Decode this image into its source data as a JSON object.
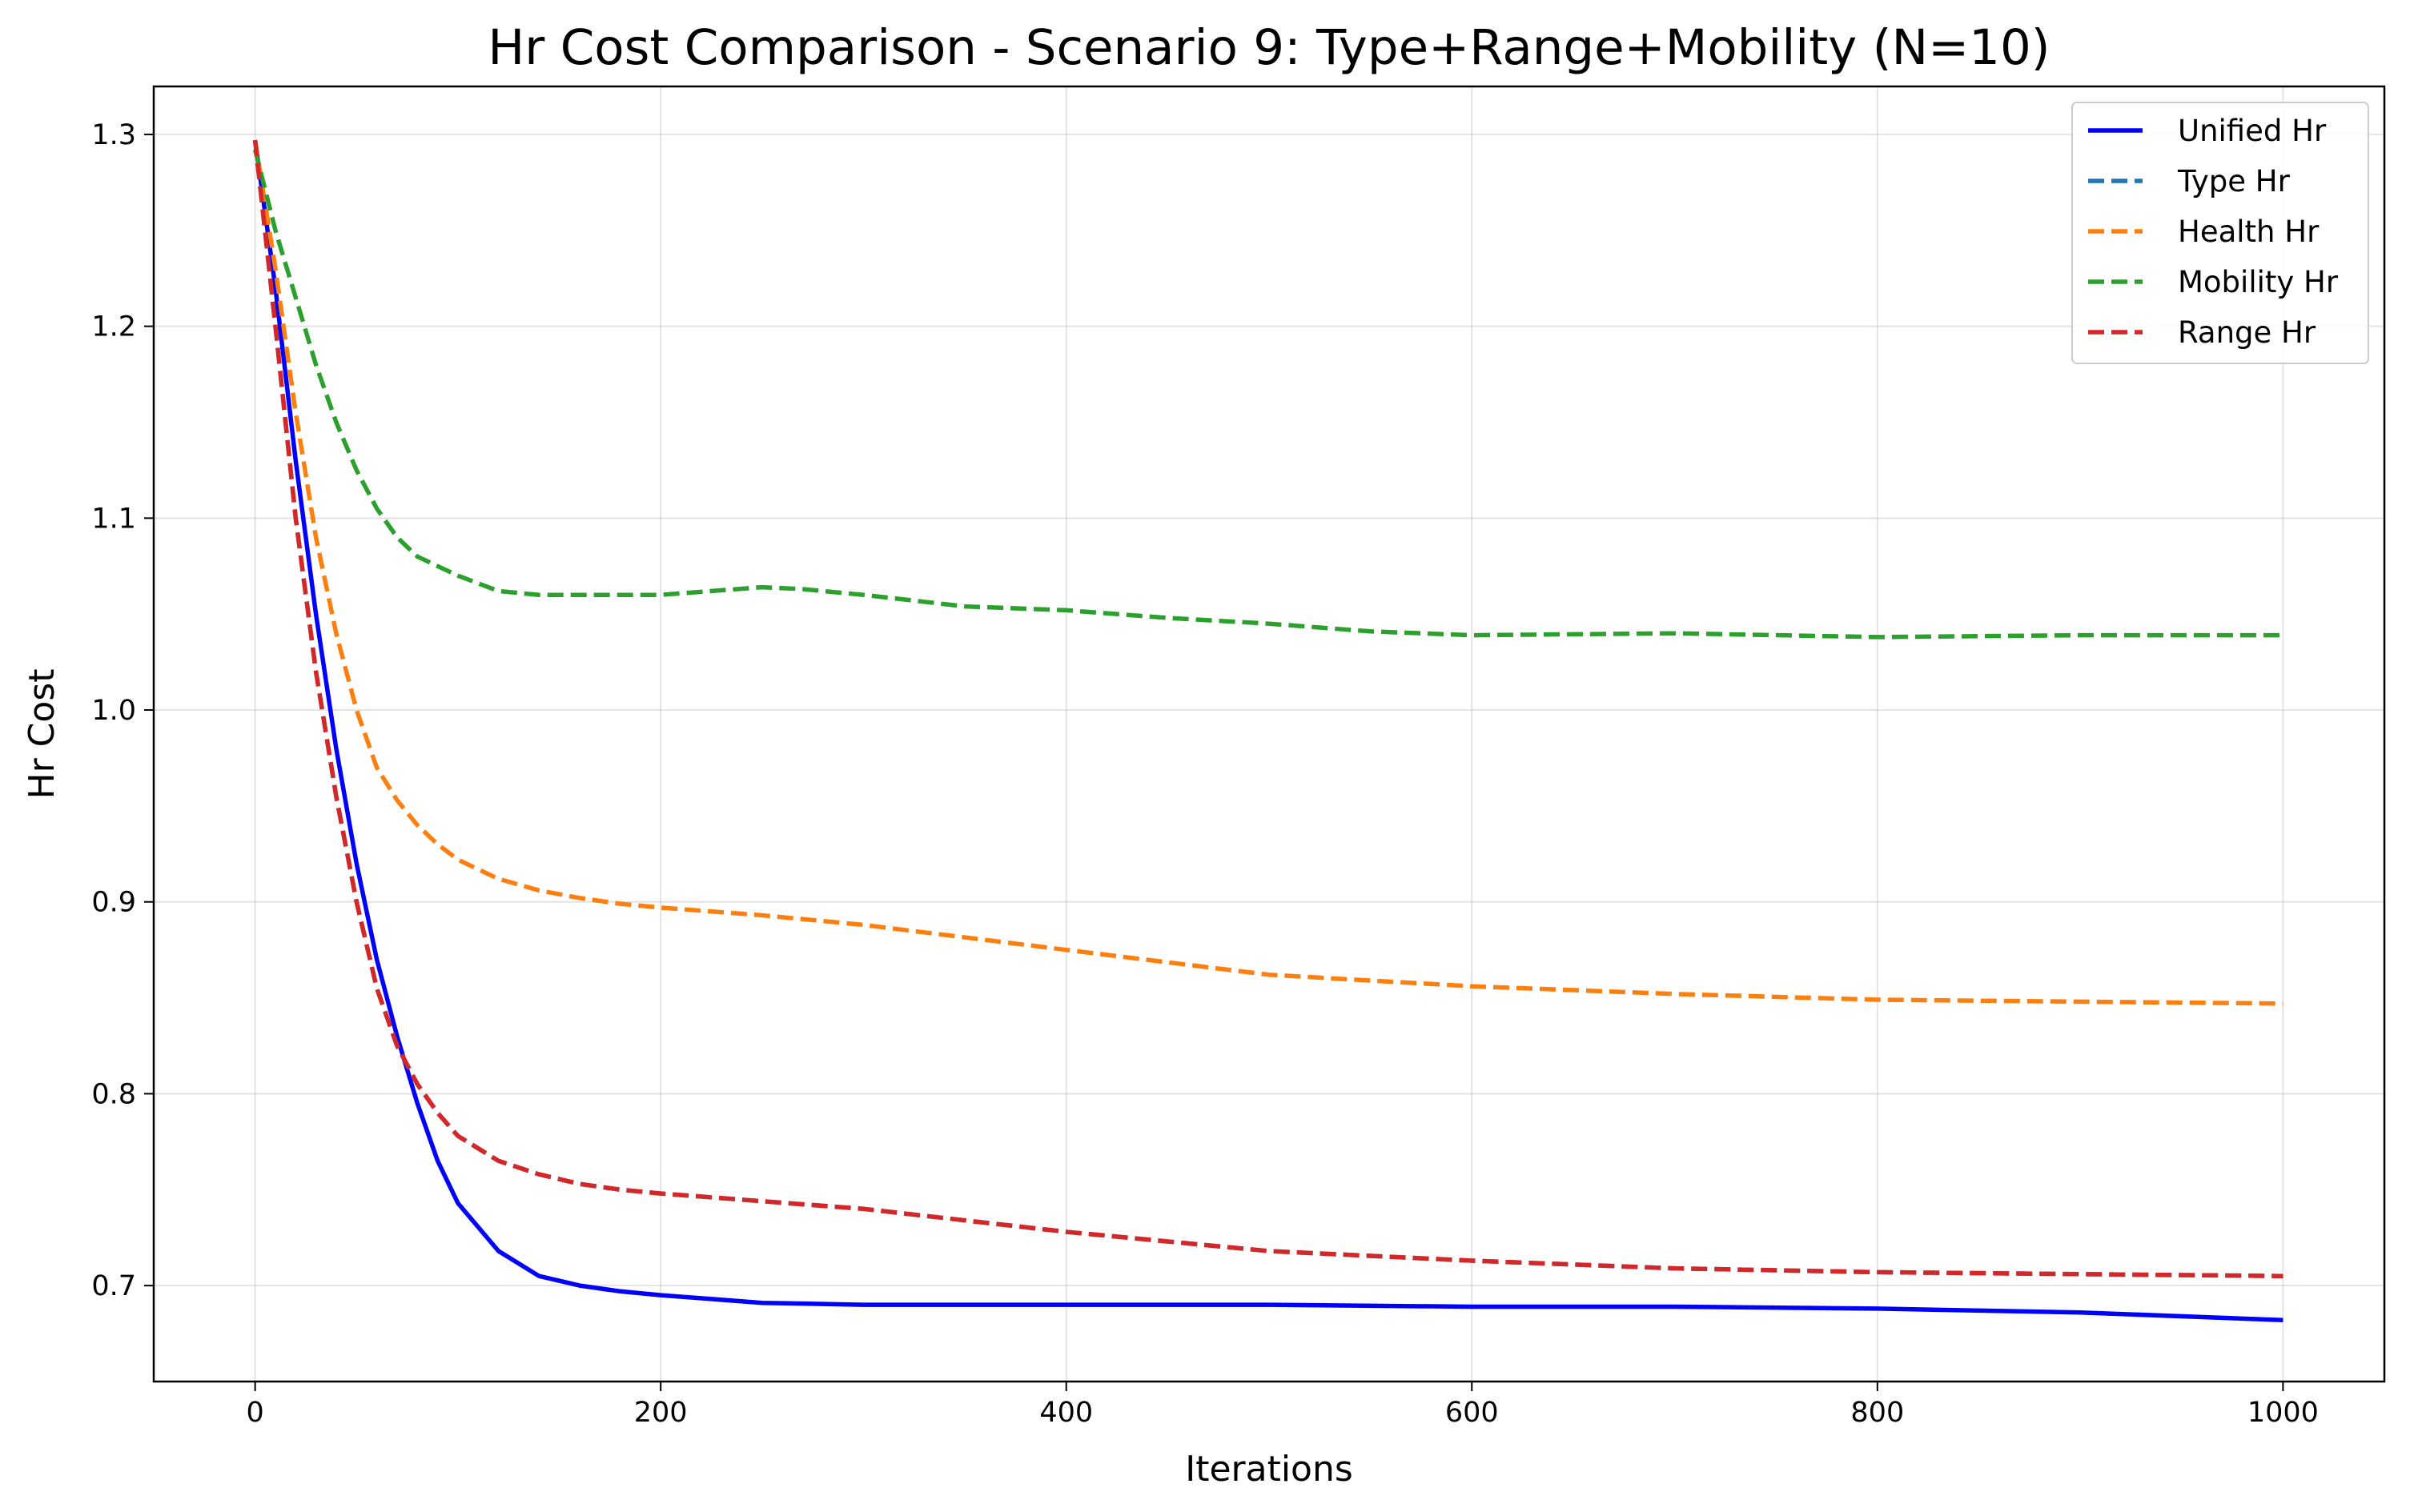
{
  "chart_data": {
    "type": "line",
    "title": "Hr Cost Comparison - Scenario 9: Type+Range+Mobility (N=10)",
    "xlabel": "Iterations",
    "ylabel": "Hr Cost",
    "xlim": [
      -50,
      1050
    ],
    "ylim": [
      0.65,
      1.325
    ],
    "xticks": [
      0,
      200,
      400,
      600,
      800,
      1000
    ],
    "xtick_labels": [
      "0",
      "200",
      "400",
      "600",
      "800",
      "1000"
    ],
    "yticks": [
      0.7,
      0.8,
      0.9,
      1.0,
      1.1,
      1.2,
      1.3
    ],
    "ytick_labels": [
      "0.7",
      "0.8",
      "0.9",
      "1.0",
      "1.1",
      "1.2",
      "1.3"
    ],
    "grid": true,
    "legend_position": "top-right",
    "series": [
      {
        "name": "Unified Hr",
        "color": "#0000ff",
        "style": "solid",
        "x": [
          0,
          10,
          20,
          30,
          40,
          50,
          60,
          70,
          80,
          90,
          100,
          120,
          140,
          160,
          180,
          200,
          250,
          300,
          400,
          500,
          600,
          700,
          800,
          900,
          1000
        ],
        "y": [
          1.297,
          1.22,
          1.13,
          1.05,
          0.98,
          0.92,
          0.87,
          0.83,
          0.795,
          0.765,
          0.743,
          0.718,
          0.705,
          0.7,
          0.697,
          0.695,
          0.691,
          0.69,
          0.69,
          0.69,
          0.689,
          0.689,
          0.688,
          0.686,
          0.682
        ]
      },
      {
        "name": "Type Hr",
        "color": "#1f77b4",
        "style": "dashed",
        "x": [
          0,
          10,
          20,
          30,
          40,
          50,
          60,
          70,
          80,
          90,
          100,
          120,
          140,
          160,
          180,
          200,
          250,
          300,
          400,
          500,
          600,
          700,
          800,
          900,
          1000
        ],
        "y": [
          1.297,
          1.2,
          1.1,
          1.02,
          0.955,
          0.9,
          0.855,
          0.825,
          0.805,
          0.79,
          0.778,
          0.765,
          0.758,
          0.753,
          0.75,
          0.748,
          0.744,
          0.74,
          0.728,
          0.718,
          0.713,
          0.709,
          0.707,
          0.706,
          0.705
        ]
      },
      {
        "name": "Health Hr",
        "color": "#ff7f0e",
        "style": "dashed",
        "x": [
          0,
          10,
          20,
          30,
          40,
          50,
          60,
          70,
          80,
          90,
          100,
          120,
          140,
          160,
          180,
          200,
          250,
          300,
          400,
          500,
          600,
          700,
          800,
          900,
          1000
        ],
        "y": [
          1.297,
          1.23,
          1.155,
          1.09,
          1.04,
          1.0,
          0.97,
          0.953,
          0.94,
          0.93,
          0.922,
          0.912,
          0.906,
          0.902,
          0.899,
          0.897,
          0.893,
          0.888,
          0.875,
          0.862,
          0.856,
          0.852,
          0.849,
          0.848,
          0.847
        ]
      },
      {
        "name": "Mobility Hr",
        "color": "#2ca02c",
        "style": "dashed",
        "x": [
          0,
          10,
          20,
          30,
          40,
          50,
          60,
          70,
          80,
          90,
          100,
          120,
          140,
          160,
          180,
          200,
          250,
          270,
          300,
          350,
          400,
          450,
          500,
          550,
          600,
          700,
          800,
          900,
          1000
        ],
        "y": [
          1.292,
          1.25,
          1.215,
          1.18,
          1.15,
          1.125,
          1.105,
          1.09,
          1.08,
          1.075,
          1.07,
          1.062,
          1.06,
          1.06,
          1.06,
          1.06,
          1.064,
          1.063,
          1.06,
          1.054,
          1.052,
          1.048,
          1.045,
          1.041,
          1.039,
          1.04,
          1.038,
          1.039,
          1.039
        ]
      },
      {
        "name": "Range Hr",
        "color": "#d62728",
        "style": "dashed",
        "x": [
          0,
          10,
          20,
          30,
          40,
          50,
          60,
          70,
          80,
          90,
          100,
          120,
          140,
          160,
          180,
          200,
          250,
          300,
          400,
          500,
          600,
          700,
          800,
          900,
          1000
        ],
        "y": [
          1.297,
          1.2,
          1.1,
          1.02,
          0.955,
          0.9,
          0.855,
          0.825,
          0.805,
          0.79,
          0.778,
          0.765,
          0.758,
          0.753,
          0.75,
          0.748,
          0.744,
          0.74,
          0.728,
          0.718,
          0.713,
          0.709,
          0.707,
          0.706,
          0.705
        ]
      }
    ]
  }
}
